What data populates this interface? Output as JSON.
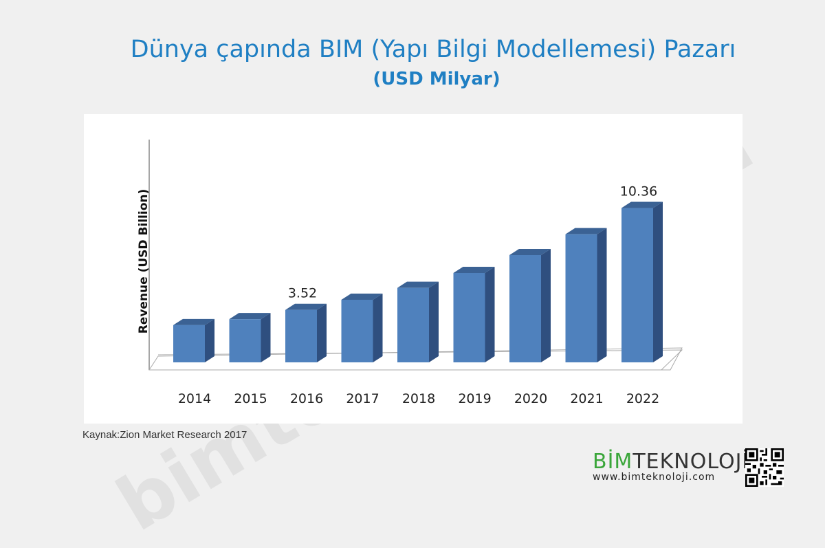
{
  "header": {
    "title": "Dünya çapında BIM (Yapı Bilgi Modellemesi) Pazarı",
    "subtitle": "(USD Milyar)"
  },
  "source": "Kaynak:Zion Market Research 2017",
  "watermark": "bimteknoloji.com",
  "logo": {
    "bim": "BİM",
    "tek": "TEKNOLOJİ",
    "url": "www.bimteknoloji.com"
  },
  "colors": {
    "title": "#1f7fc3",
    "bar_front": "#4f81bd",
    "bar_side": "#2f4f7f",
    "bar_top": "#3b6294",
    "logo_green": "#3aa63a"
  },
  "chart_data": {
    "type": "bar",
    "style": "3d-column",
    "ylabel": "Revenue (USD Billion)",
    "categories": [
      "2014",
      "2015",
      "2016",
      "2017",
      "2018",
      "2019",
      "2020",
      "2021",
      "2022"
    ],
    "values": [
      2.5,
      2.9,
      3.52,
      4.2,
      5.0,
      6.0,
      7.2,
      8.6,
      10.36
    ],
    "data_labels": [
      null,
      null,
      "3.52",
      null,
      null,
      null,
      null,
      null,
      "10.36"
    ],
    "ylim": [
      0,
      12
    ],
    "grid": false,
    "legend": "none"
  }
}
